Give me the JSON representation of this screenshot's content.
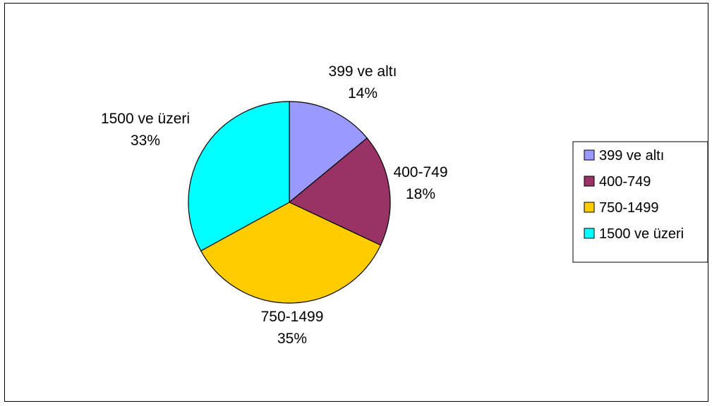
{
  "chart_data": {
    "type": "pie",
    "categories": [
      "399 ve altı",
      "400-749",
      "750-1499",
      "1500 ve üzeri"
    ],
    "values": [
      14,
      18,
      35,
      33
    ],
    "data_labels": [
      {
        "category": "399 ve altı",
        "percent": "14%"
      },
      {
        "category": "400-749",
        "percent": "18%"
      },
      {
        "category": "750-1499",
        "percent": "35%"
      },
      {
        "category": "1500 ve üzeri",
        "percent": "33%"
      }
    ],
    "colors": [
      "#9999ff",
      "#993366",
      "#ffcc00",
      "#00ffff"
    ],
    "legend": {
      "placement": "right",
      "entries": [
        "399 ve altı",
        "400-749",
        "750-1499",
        "1500 ve üzeri"
      ]
    },
    "start_angle_deg": 0,
    "direction": "clockwise"
  }
}
